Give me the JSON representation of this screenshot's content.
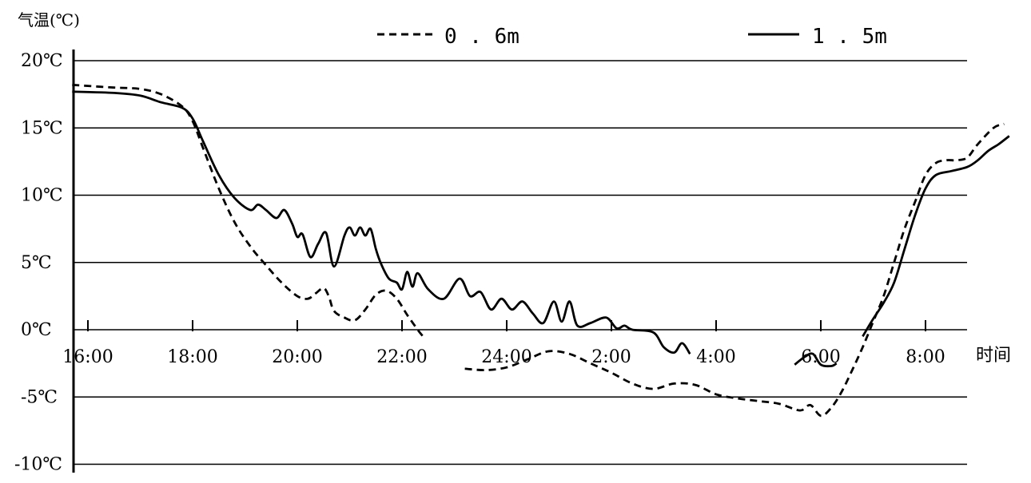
{
  "chart_data": {
    "type": "line",
    "ylabel": "气温(℃)",
    "xlabel": "时间",
    "ylim": [
      -10,
      20
    ],
    "xlim": [
      -0.2,
      17.2
    ],
    "y_ticks": [
      {
        "value": 20,
        "label": "20℃"
      },
      {
        "value": 15,
        "label": "15℃"
      },
      {
        "value": 10,
        "label": "10℃"
      },
      {
        "value": 5,
        "label": "5℃"
      },
      {
        "value": 0,
        "label": "0℃"
      },
      {
        "value": -5,
        "label": "-5℃"
      },
      {
        "value": -10,
        "label": "-10℃"
      }
    ],
    "x_ticks": [
      {
        "value": 0,
        "label": "16:00"
      },
      {
        "value": 2,
        "label": "18:00"
      },
      {
        "value": 4,
        "label": "20:00"
      },
      {
        "value": 6,
        "label": "22:00"
      },
      {
        "value": 8,
        "label": "24:00"
      },
      {
        "value": 10,
        "label": "2:00"
      },
      {
        "value": 12,
        "label": "4:00"
      },
      {
        "value": 14,
        "label": "6:00"
      },
      {
        "value": 16,
        "label": "8:00"
      }
    ],
    "grid": "horizontal",
    "legend_position": "top",
    "series": [
      {
        "name": "0.6m",
        "style": "dashed",
        "color": "#000000",
        "points": [
          [
            -0.3,
            18.2
          ],
          [
            0.5,
            18.0
          ],
          [
            1.0,
            17.9
          ],
          [
            1.4,
            17.5
          ],
          [
            1.8,
            16.6
          ],
          [
            2.0,
            15.5
          ],
          [
            2.2,
            13.5
          ],
          [
            2.5,
            10.5
          ],
          [
            2.8,
            8.0
          ],
          [
            3.1,
            6.2
          ],
          [
            3.4,
            4.8
          ],
          [
            3.7,
            3.5
          ],
          [
            4.0,
            2.5
          ],
          [
            4.2,
            2.3
          ],
          [
            4.35,
            2.7
          ],
          [
            4.5,
            3.1
          ],
          [
            4.6,
            2.5
          ],
          [
            4.7,
            1.4
          ],
          [
            4.9,
            0.9
          ],
          [
            5.1,
            0.7
          ],
          [
            5.3,
            1.5
          ],
          [
            5.5,
            2.6
          ],
          [
            5.7,
            2.9
          ],
          [
            5.9,
            2.3
          ],
          [
            6.1,
            1.1
          ],
          [
            6.3,
            0.0
          ],
          [
            6.4,
            -0.5
          ]
        ],
        "points_b": [
          [
            7.2,
            -2.9
          ],
          [
            7.6,
            -3.0
          ],
          [
            8.0,
            -2.8
          ],
          [
            8.4,
            -2.2
          ],
          [
            8.8,
            -1.6
          ],
          [
            9.2,
            -1.8
          ],
          [
            9.6,
            -2.5
          ],
          [
            10.0,
            -3.2
          ],
          [
            10.4,
            -4.0
          ],
          [
            10.8,
            -4.4
          ],
          [
            11.2,
            -4.0
          ],
          [
            11.6,
            -4.1
          ],
          [
            12.0,
            -4.8
          ],
          [
            12.4,
            -5.1
          ],
          [
            12.8,
            -5.3
          ],
          [
            13.2,
            -5.5
          ],
          [
            13.6,
            -6.0
          ],
          [
            13.8,
            -5.6
          ],
          [
            14.0,
            -6.4
          ],
          [
            14.2,
            -5.8
          ],
          [
            14.4,
            -4.6
          ],
          [
            14.6,
            -3.0
          ],
          [
            14.8,
            -1.3
          ],
          [
            15.0,
            0.6
          ],
          [
            15.2,
            2.5
          ],
          [
            15.4,
            5.0
          ],
          [
            15.6,
            7.5
          ],
          [
            15.8,
            9.5
          ],
          [
            16.0,
            11.5
          ],
          [
            16.2,
            12.4
          ],
          [
            16.4,
            12.6
          ],
          [
            16.6,
            12.6
          ],
          [
            16.8,
            12.8
          ],
          [
            17.0,
            13.8
          ],
          [
            17.3,
            15.0
          ],
          [
            17.5,
            15.3
          ]
        ]
      },
      {
        "name": "1.5m",
        "style": "solid",
        "color": "#000000",
        "points": [
          [
            -0.3,
            17.7
          ],
          [
            0.5,
            17.6
          ],
          [
            1.0,
            17.4
          ],
          [
            1.4,
            16.9
          ],
          [
            1.8,
            16.5
          ],
          [
            2.0,
            15.7
          ],
          [
            2.2,
            14.0
          ],
          [
            2.5,
            11.5
          ],
          [
            2.8,
            9.8
          ],
          [
            3.1,
            8.9
          ],
          [
            3.25,
            9.3
          ],
          [
            3.4,
            8.9
          ],
          [
            3.6,
            8.3
          ],
          [
            3.75,
            8.9
          ],
          [
            3.9,
            7.9
          ],
          [
            4.0,
            6.9
          ],
          [
            4.1,
            7.1
          ],
          [
            4.25,
            5.4
          ],
          [
            4.4,
            6.4
          ],
          [
            4.55,
            7.2
          ],
          [
            4.7,
            4.7
          ],
          [
            4.9,
            7.0
          ],
          [
            5.0,
            7.6
          ],
          [
            5.1,
            7.0
          ],
          [
            5.2,
            7.6
          ],
          [
            5.3,
            7.0
          ],
          [
            5.4,
            7.5
          ],
          [
            5.5,
            6.0
          ],
          [
            5.6,
            4.9
          ],
          [
            5.75,
            3.8
          ],
          [
            5.9,
            3.5
          ],
          [
            6.0,
            3.0
          ],
          [
            6.1,
            4.3
          ],
          [
            6.2,
            3.2
          ],
          [
            6.3,
            4.2
          ],
          [
            6.5,
            3.0
          ],
          [
            6.8,
            2.3
          ],
          [
            7.1,
            3.8
          ],
          [
            7.3,
            2.5
          ],
          [
            7.5,
            2.8
          ],
          [
            7.7,
            1.5
          ],
          [
            7.9,
            2.3
          ],
          [
            8.1,
            1.5
          ],
          [
            8.3,
            2.1
          ],
          [
            8.5,
            1.2
          ],
          [
            8.7,
            0.5
          ],
          [
            8.9,
            2.1
          ],
          [
            9.05,
            0.6
          ],
          [
            9.2,
            2.1
          ],
          [
            9.35,
            0.3
          ],
          [
            9.6,
            0.5
          ],
          [
            9.9,
            0.9
          ],
          [
            10.1,
            0.1
          ],
          [
            10.25,
            0.3
          ],
          [
            10.4,
            0.0
          ],
          [
            10.8,
            -0.2
          ],
          [
            11.0,
            -1.3
          ],
          [
            11.2,
            -1.7
          ],
          [
            11.35,
            -1.0
          ],
          [
            11.5,
            -1.8
          ]
        ],
        "points_b": [
          [
            13.5,
            -2.6
          ],
          [
            13.7,
            -2.0
          ],
          [
            13.85,
            -1.8
          ],
          [
            14.0,
            -2.6
          ],
          [
            14.2,
            -2.7
          ],
          [
            14.3,
            -2.5
          ]
        ],
        "points_c": [
          [
            14.8,
            -0.5
          ],
          [
            15.0,
            0.8
          ],
          [
            15.2,
            2.0
          ],
          [
            15.4,
            3.5
          ],
          [
            15.6,
            6.0
          ],
          [
            15.8,
            8.5
          ],
          [
            16.0,
            10.5
          ],
          [
            16.2,
            11.5
          ],
          [
            16.5,
            11.8
          ],
          [
            16.8,
            12.1
          ],
          [
            17.0,
            12.6
          ],
          [
            17.2,
            13.3
          ],
          [
            17.4,
            13.8
          ],
          [
            17.6,
            14.4
          ]
        ]
      }
    ]
  }
}
